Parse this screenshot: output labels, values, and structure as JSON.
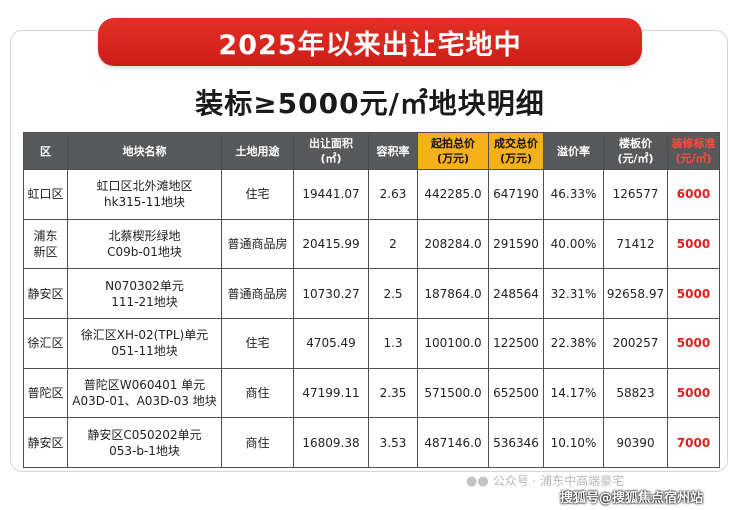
{
  "banner": "2025年以来出让宅地中",
  "subtitle": "装标≥5000元/㎡地块明细",
  "headers": {
    "district": "区",
    "name": "地块名称",
    "use": "土地用途",
    "area_l1": "出让面积",
    "area_l2": "(㎡)",
    "far": "容积率",
    "start_l1": "起拍总价",
    "start_l2": "(万元)",
    "deal_l1": "成交总价",
    "deal_l2": "(万元)",
    "premium": "溢价率",
    "floor_l1": "楼板价",
    "floor_l2": "(元/㎡)",
    "deco_l1": "装修标准",
    "deco_l2": "(元/㎡)"
  },
  "rows": [
    {
      "district_l1": "虹口区",
      "district_l2": "",
      "name_l1": "虹口区北外滩地区",
      "name_l2": "hk315-11地块",
      "use": "住宅",
      "area": "19441.07",
      "far": "2.63",
      "start": "442285.0",
      "deal": "647190",
      "premium": "46.33%",
      "floor": "126577",
      "deco": "6000"
    },
    {
      "district_l1": "浦东",
      "district_l2": "新区",
      "name_l1": "北蔡楔形绿地",
      "name_l2": "C09b-01地块",
      "use": "普通商品房",
      "area": "20415.99",
      "far": "2",
      "start": "208284.0",
      "deal": "291590",
      "premium": "40.00%",
      "floor": "71412",
      "deco": "5000"
    },
    {
      "district_l1": "静安区",
      "district_l2": "",
      "name_l1": "N070302单元",
      "name_l2": "111-21地块",
      "use": "普通商品房",
      "area": "10730.27",
      "far": "2.5",
      "start": "187864.0",
      "deal": "248564",
      "premium": "32.31%",
      "floor": "92658.97",
      "deco": "5000"
    },
    {
      "district_l1": "徐汇区",
      "district_l2": "",
      "name_l1": "徐汇区XH-02(TPL)单元",
      "name_l2": "051-11地块",
      "use": "住宅",
      "area": "4705.49",
      "far": "1.3",
      "start": "100100.0",
      "deal": "122500",
      "premium": "22.38%",
      "floor": "200257",
      "deco": "5000"
    },
    {
      "district_l1": "普陀区",
      "district_l2": "",
      "name_l1": "普陀区W060401 单元",
      "name_l2": "A03D-01、A03D-03 地块",
      "use": "商住",
      "area": "47199.11",
      "far": "2.35",
      "start": "571500.0",
      "deal": "652500",
      "premium": "14.17%",
      "floor": "58823",
      "deco": "5000"
    },
    {
      "district_l1": "静安区",
      "district_l2": "",
      "name_l1": "静安区C050202单元",
      "name_l2": "053-b-1地块",
      "use": "商住",
      "area": "16809.38",
      "far": "3.53",
      "start": "487146.0",
      "deal": "536346",
      "premium": "10.10%",
      "floor": "90390",
      "deco": "7000"
    }
  ],
  "watermark": {
    "icon": "wechat-icon",
    "text": "公众号 · 浦东中高端豪宅",
    "source": "搜狐号@搜狐焦点宿州站"
  }
}
